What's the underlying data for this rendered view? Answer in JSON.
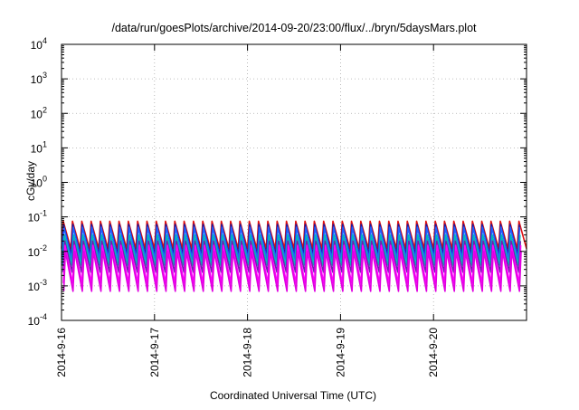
{
  "chart_data": {
    "type": "line",
    "title": "/data/run/goesPlots/archive/2014-09-20/23:00/flux/../bryn/5daysMars.plot",
    "xlabel": "Coordinated Universal Time (UTC)",
    "ylabel": "cGy/day",
    "yscale": "log",
    "ylim": [
      0.0001,
      10000
    ],
    "xlim": [
      "2014-09-16",
      "2014-09-21"
    ],
    "grid": true,
    "x_ticks": [
      "2014-9-16",
      "2014-9-17",
      "2014-9-18",
      "2014-9-19",
      "2014-9-20"
    ],
    "y_ticks": [
      {
        "base": "10",
        "exp": "-4",
        "value": 0.0001
      },
      {
        "base": "10",
        "exp": "-3",
        "value": 0.001
      },
      {
        "base": "10",
        "exp": "-2",
        "value": 0.01
      },
      {
        "base": "10",
        "exp": "-1",
        "value": 0.1
      },
      {
        "base": "10",
        "exp": "0",
        "value": 1
      },
      {
        "base": "10",
        "exp": "1",
        "value": 10
      },
      {
        "base": "10",
        "exp": "2",
        "value": 100
      },
      {
        "base": "10",
        "exp": "3",
        "value": 1000
      },
      {
        "base": "10",
        "exp": "4",
        "value": 10000
      }
    ],
    "cycle_period_days": 0.1,
    "series": [
      {
        "color": "#e01010",
        "peak": 0.075,
        "trough": 0.012
      },
      {
        "color": "#1a1aa0",
        "peak": 0.06,
        "trough": 0.008
      },
      {
        "color": "#2060ff",
        "peak": 0.05,
        "trough": 0.006
      },
      {
        "color": "#00b8b8",
        "peak": 0.03,
        "trough": 0.004
      },
      {
        "color": "#7020b0",
        "peak": 0.02,
        "trough": 0.0025
      },
      {
        "color": "#ff00ff",
        "peak": 0.015,
        "trough": 0.0012
      },
      {
        "color": "#e000e0",
        "peak": 0.01,
        "trough": 0.0007
      }
    ]
  }
}
